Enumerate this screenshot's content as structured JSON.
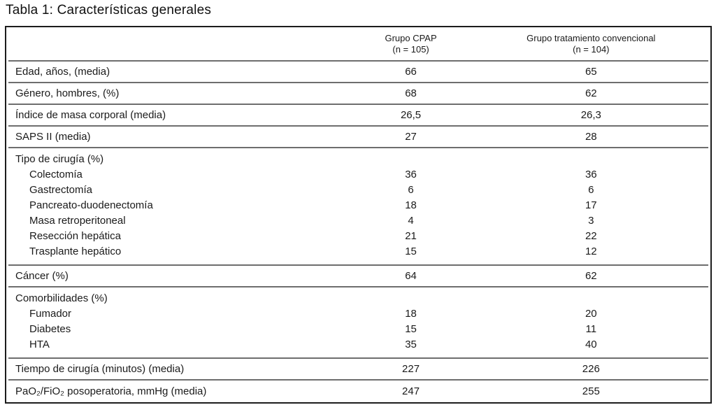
{
  "title": "Tabla 1: Características generales",
  "table": {
    "header": {
      "col_cpap_line1": "Grupo CPAP",
      "col_cpap_line2": "(n = 105)",
      "col_conv_line1": "Grupo tratamiento convencional",
      "col_conv_line2": "(n = 104)"
    },
    "rows": [
      {
        "label": "Edad, años, (media)",
        "cpap": "66",
        "conv": "65"
      },
      {
        "label": "Género, hombres, (%)",
        "cpap": "68",
        "conv": "62"
      },
      {
        "label": "Índice de masa corporal (media)",
        "cpap": "26,5",
        "conv": "26,3"
      },
      {
        "label": "SAPS II (media)",
        "cpap": "27",
        "conv": "28"
      },
      {
        "label": "Tipo de cirugía (%)",
        "cpap": "",
        "conv": "",
        "sub_rows": [
          {
            "label": "Colectomía",
            "cpap": "36",
            "conv": "36"
          },
          {
            "label": "Gastrectomía",
            "cpap": "6",
            "conv": "6"
          },
          {
            "label": "Pancreato-duodenectomía",
            "cpap": "18",
            "conv": "17"
          },
          {
            "label": "Masa retroperitoneal",
            "cpap": "4",
            "conv": "3"
          },
          {
            "label": "Resección hepática",
            "cpap": "21",
            "conv": "22"
          },
          {
            "label": "Trasplante hepático",
            "cpap": "15",
            "conv": "12"
          }
        ]
      },
      {
        "label": "Cáncer (%)",
        "cpap": "64",
        "conv": "62"
      },
      {
        "label": "Comorbilidades (%)",
        "cpap": "",
        "conv": "",
        "sub_rows": [
          {
            "label": "Fumador",
            "cpap": "18",
            "conv": "20"
          },
          {
            "label": "Diabetes",
            "cpap": "15",
            "conv": "11"
          },
          {
            "label": "HTA",
            "cpap": "35",
            "conv": "40"
          }
        ]
      },
      {
        "label": "Tiempo de cirugía (minutos) (media)",
        "cpap": "227",
        "conv": "226"
      },
      {
        "label": "PaO₂/FiO₂ posoperatoria, mmHg (media)",
        "cpap": "247",
        "conv": "255"
      }
    ]
  }
}
